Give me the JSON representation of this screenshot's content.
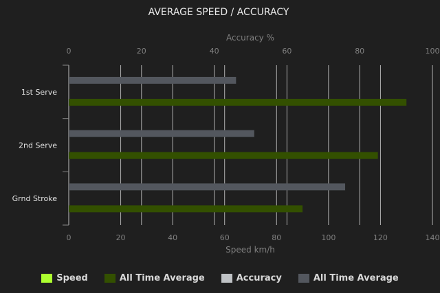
{
  "chart_data": {
    "type": "bar",
    "orientation": "horizontal",
    "title": "AVERAGE SPEED / ACCURACY",
    "categories": [
      "1st Serve",
      "2nd Serve",
      "Grnd Stroke"
    ],
    "top_axis": {
      "label": "Accuracy %",
      "range": [
        0,
        100
      ],
      "ticks": [
        "0",
        "20",
        "40",
        "60",
        "80",
        "100"
      ]
    },
    "bottom_axis": {
      "label": "Speed km/h",
      "range": [
        0,
        140
      ],
      "ticks": [
        "0",
        "20",
        "40",
        "60",
        "80",
        "100",
        "120",
        "140"
      ]
    },
    "series": [
      {
        "name": "Speed",
        "axis": "bottom",
        "color": "#adff2f",
        "values": [
          null,
          null,
          null
        ]
      },
      {
        "name": "All Time Average",
        "axis": "bottom",
        "color": "#335000",
        "values": [
          130,
          119,
          90
        ]
      },
      {
        "name": "Accuracy",
        "axis": "top",
        "color": "#bfc2c5",
        "values": [
          null,
          null,
          null
        ]
      },
      {
        "name": "All Time Average",
        "axis": "top",
        "color": "#53575e",
        "values": [
          46,
          51,
          76
        ]
      }
    ],
    "grid": true,
    "legend": "bottom"
  }
}
